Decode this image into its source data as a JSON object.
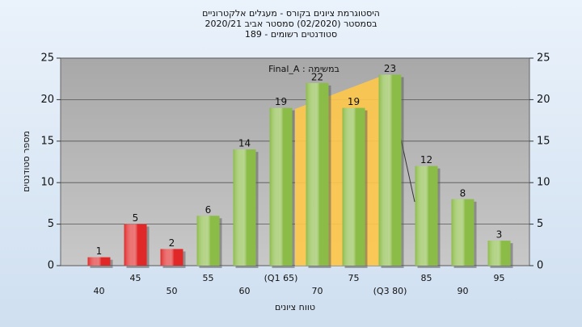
{
  "chart_data": {
    "type": "bar",
    "title": [
      "היסטוגרמת ציונים בקורס - מעגלים אלקטרוניים",
      "בסמסטר  (02/2020)  סמסטר אביב 2020/21",
      "סטודנטים רשומים - 189"
    ],
    "annotation": "במשימה : Final_A",
    "x_label": "טווח ציונים",
    "y_label": "מספר סטודנטים",
    "categories": [
      "40",
      "45",
      "50",
      "55",
      "60",
      "(Q1 65)",
      "70",
      "75",
      "(Q3 80)",
      "85",
      "90",
      "95"
    ],
    "values": [
      1,
      5,
      2,
      6,
      14,
      19,
      22,
      19,
      23,
      12,
      8,
      3
    ],
    "colors": [
      "#e02828",
      "#e02828",
      "#e02828",
      "#8cbc48",
      "#8cbc48",
      "#8cbc48",
      "#8cbc48",
      "#8cbc48",
      "#8cbc48",
      "#8cbc48",
      "#8cbc48",
      "#8cbc48"
    ],
    "ylim": [
      0,
      25
    ],
    "yticks": [
      0,
      5,
      10,
      15,
      20,
      25
    ],
    "grid": true
  }
}
